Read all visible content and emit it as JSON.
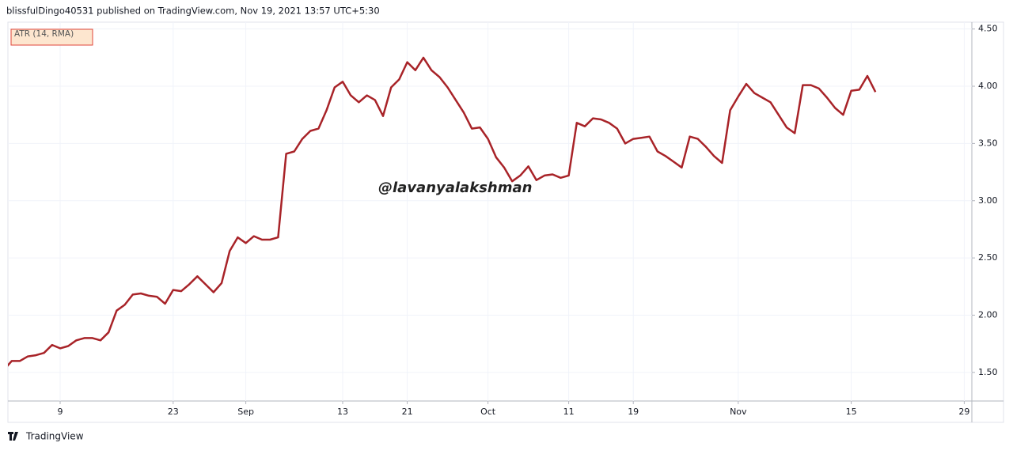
{
  "header": "blissfulDingo40531 published on TradingView.com, Nov 19, 2021 13:57 UTC+5:30",
  "footer": "TradingView",
  "chart_data": {
    "type": "line",
    "annotation": "@lavanyalakshman",
    "categories": [
      null,
      null,
      null,
      null,
      null,
      null,
      null,
      "9",
      null,
      null,
      null,
      null,
      null,
      null,
      null,
      null,
      null,
      null,
      null,
      null,
      null,
      "23",
      null,
      null,
      null,
      null,
      null,
      null,
      null,
      null,
      "Sep",
      null,
      null,
      null,
      null,
      null,
      null,
      null,
      null,
      null,
      null,
      null,
      "13",
      null,
      null,
      null,
      null,
      null,
      null,
      null,
      "21",
      null,
      null,
      null,
      null,
      null,
      null,
      null,
      null,
      null,
      "Oct",
      null,
      null,
      null,
      null,
      null,
      null,
      null,
      null,
      null,
      "11",
      null,
      null,
      null,
      null,
      null,
      null,
      null,
      "19",
      null,
      null,
      null,
      null,
      null,
      null,
      null,
      null,
      null,
      null,
      null,
      null,
      "Nov",
      null,
      null,
      null,
      null,
      null,
      null,
      null,
      null,
      null,
      null,
      null,
      null,
      null,
      "15",
      null,
      null,
      null,
      null,
      null,
      null,
      null,
      null,
      null,
      null,
      null,
      null,
      null,
      "29",
      null,
      null
    ],
    "series": [
      {
        "name": "ATR (14, RMA)",
        "color": "#a82328",
        "values": [
          1.52,
          1.6,
          1.6,
          1.64,
          1.65,
          1.67,
          1.74,
          1.71,
          1.73,
          1.78,
          1.8,
          1.8,
          1.78,
          1.85,
          2.04,
          2.09,
          2.18,
          2.19,
          2.17,
          2.16,
          2.1,
          2.22,
          2.21,
          2.27,
          2.34,
          2.27,
          2.2,
          2.28,
          2.56,
          2.68,
          2.63,
          2.69,
          2.66,
          2.66,
          2.68,
          3.41,
          3.43,
          3.54,
          3.61,
          3.63,
          3.79,
          3.99,
          4.04,
          3.92,
          3.86,
          3.92,
          3.88,
          3.74,
          3.99,
          4.06,
          4.21,
          4.14,
          4.25,
          4.14,
          4.08,
          3.99,
          3.88,
          3.77,
          3.63,
          3.64,
          3.54,
          3.38,
          3.29,
          3.17,
          3.22,
          3.3,
          3.18,
          3.22,
          3.23,
          3.2,
          3.22,
          3.68,
          3.65,
          3.72,
          3.71,
          3.68,
          3.63,
          3.5,
          3.54,
          3.55,
          3.56,
          3.43,
          3.39,
          3.34,
          3.29,
          3.56,
          3.54,
          3.47,
          3.39,
          3.33,
          3.79,
          3.91,
          4.02,
          3.94,
          3.9,
          3.86,
          3.75,
          3.64,
          3.59,
          4.01,
          4.01,
          3.98,
          3.9,
          3.81,
          3.75,
          3.96,
          3.97,
          4.09,
          3.95,
          null,
          null,
          null,
          null,
          null,
          null,
          null,
          null,
          null,
          null,
          null,
          null,
          null
        ]
      }
    ],
    "ylim": [
      1.25,
      4.56
    ],
    "yticks": [
      {
        "value": 1.5,
        "label": "1.50"
      },
      {
        "value": 2,
        "label": "2.00"
      },
      {
        "value": 2.5,
        "label": "2.50"
      },
      {
        "value": 3,
        "label": "3.00"
      },
      {
        "value": 3.5,
        "label": "3.50"
      },
      {
        "value": 4,
        "label": "4.00"
      },
      {
        "value": 4.5,
        "label": "4.50"
      }
    ],
    "grid": true
  }
}
